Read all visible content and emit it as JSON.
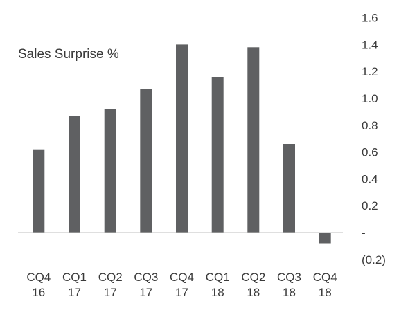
{
  "chart_data": {
    "type": "bar",
    "title": "Sales Surprise %",
    "categories": [
      [
        "CQ4",
        "16"
      ],
      [
        "CQ1",
        "17"
      ],
      [
        "CQ2",
        "17"
      ],
      [
        "CQ3",
        "17"
      ],
      [
        "CQ4",
        "17"
      ],
      [
        "CQ1",
        "18"
      ],
      [
        "CQ2",
        "18"
      ],
      [
        "CQ3",
        "18"
      ],
      [
        "CQ4",
        "18"
      ]
    ],
    "values": [
      0.62,
      0.87,
      0.92,
      1.07,
      1.4,
      1.16,
      1.38,
      0.66,
      -0.08
    ],
    "ylim": [
      -0.2,
      1.6
    ],
    "y_ticks": [
      {
        "value": 1.6,
        "label": "1.6"
      },
      {
        "value": 1.4,
        "label": "1.4"
      },
      {
        "value": 1.2,
        "label": "1.2"
      },
      {
        "value": 1.0,
        "label": "1.0"
      },
      {
        "value": 0.8,
        "label": "0.8"
      },
      {
        "value": 0.6,
        "label": "0.6"
      },
      {
        "value": 0.4,
        "label": "0.4"
      },
      {
        "value": 0.2,
        "label": "0.2"
      },
      {
        "value": 0.0,
        "label": "-"
      },
      {
        "value": -0.2,
        "label": "(0.2)"
      }
    ],
    "y_axis_side": "right",
    "grid": false,
    "bar_color": "#5f6062",
    "baseline_color": "#bfbfbf"
  }
}
